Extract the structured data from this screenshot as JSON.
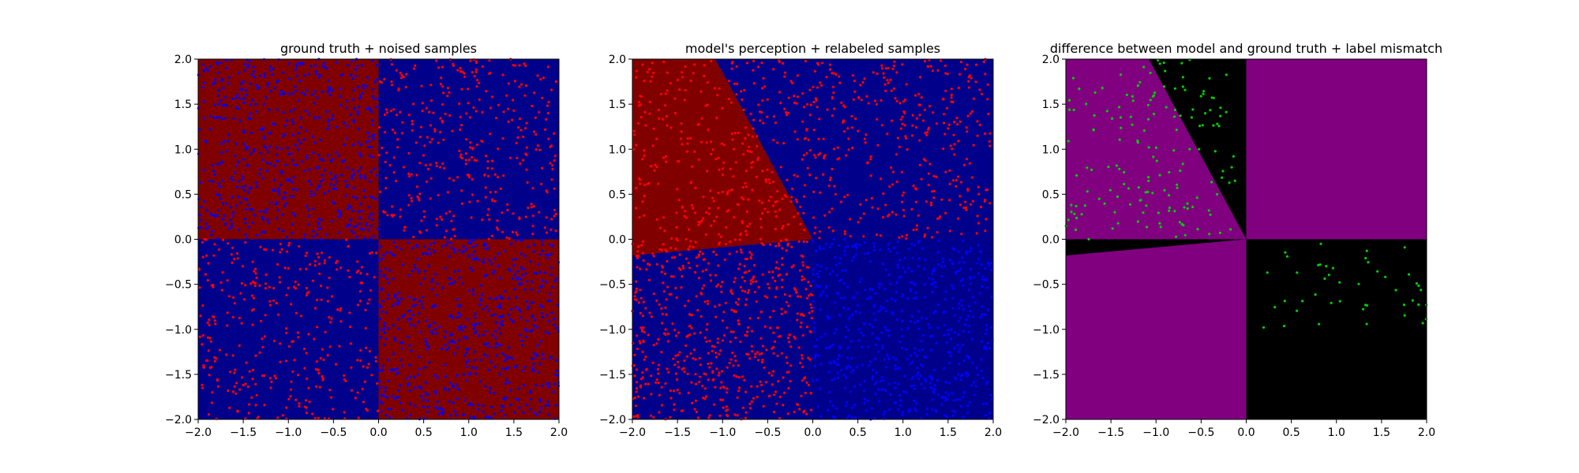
{
  "colors": {
    "dark_red": "#800000",
    "dark_blue": "#00008b",
    "purple": "#800080",
    "black": "#000000",
    "point_red": "#ff0000",
    "point_blue": "#0000ff",
    "point_green": "#00cc00"
  },
  "chart_data": [
    {
      "type": "scatter",
      "title": "ground truth + noised samples",
      "xlabel": "",
      "ylabel": "",
      "xlim": [
        -2.0,
        2.0
      ],
      "ylim": [
        -2.0,
        2.0
      ],
      "xticks": [
        "−2.0",
        "−1.5",
        "−1.0",
        "−0.5",
        "0.0",
        "0.5",
        "1.0",
        "1.5",
        "2.0"
      ],
      "yticks": [
        "−2.0",
        "−1.5",
        "−1.0",
        "−0.5",
        "0.0",
        "0.5",
        "1.0",
        "1.5",
        "2.0"
      ],
      "grid": false,
      "background_regions": [
        {
          "class": "red",
          "color": "#800000",
          "polygon": [
            [
              -2,
              0
            ],
            [
              0,
              0
            ],
            [
              0,
              2
            ],
            [
              -2,
              2
            ]
          ]
        },
        {
          "class": "blue",
          "color": "#00008b",
          "polygon": [
            [
              0,
              0
            ],
            [
              2,
              0
            ],
            [
              2,
              2
            ],
            [
              0,
              2
            ]
          ]
        },
        {
          "class": "blue",
          "color": "#00008b",
          "polygon": [
            [
              -2,
              -2
            ],
            [
              0,
              -2
            ],
            [
              0,
              0
            ],
            [
              -2,
              0
            ]
          ]
        },
        {
          "class": "red",
          "color": "#800000",
          "polygon": [
            [
              0,
              -2
            ],
            [
              2,
              -2
            ],
            [
              2,
              0
            ],
            [
              0,
              0
            ]
          ]
        }
      ],
      "series_groups": [
        {
          "color": "#0000ff",
          "regions": [
            [
              -2,
              0,
              0,
              2
            ],
            [
              0,
              2,
              -2,
              0
            ]
          ],
          "count": 1200
        },
        {
          "color": "#ff0000",
          "regions": [
            [
              0,
              2,
              0,
              2
            ],
            [
              -2,
              0,
              -2,
              0
            ]
          ],
          "count": 700
        }
      ]
    },
    {
      "type": "scatter",
      "title": "model's perception + relabeled samples",
      "xlabel": "",
      "ylabel": "",
      "xlim": [
        -2.0,
        2.0
      ],
      "ylim": [
        -2.0,
        2.0
      ],
      "xticks": [
        "−2.0",
        "−1.5",
        "−1.0",
        "−0.5",
        "0.0",
        "0.5",
        "1.0",
        "1.5",
        "2.0"
      ],
      "yticks": [
        "−2.0",
        "−1.5",
        "−1.0",
        "−0.5",
        "0.0",
        "0.5",
        "1.0",
        "1.5",
        "2.0"
      ],
      "grid": false,
      "background_regions": [
        {
          "class": "blue",
          "color": "#00008b",
          "polygon": [
            [
              -2,
              -2
            ],
            [
              2,
              -2
            ],
            [
              2,
              2
            ],
            [
              -2,
              2
            ]
          ]
        },
        {
          "class": "red",
          "color": "#800000",
          "polygon": [
            [
              -2,
              2
            ],
            [
              -1.08,
              2
            ],
            [
              0,
              0
            ],
            [
              -2,
              -0.18
            ]
          ]
        }
      ],
      "series_groups": [
        {
          "color": "#ff0000",
          "regions": [
            [
              -2,
              2,
              0,
              2
            ],
            [
              -2,
              0,
              -2,
              0
            ]
          ],
          "count": 1300
        },
        {
          "color": "#0000ff",
          "regions": [
            [
              0,
              2,
              -2,
              0
            ]
          ],
          "count": 600
        }
      ]
    },
    {
      "type": "scatter",
      "title": "difference between model and ground truth + label mismatch",
      "xlabel": "",
      "ylabel": "",
      "xlim": [
        -2.0,
        2.0
      ],
      "ylim": [
        -2.0,
        2.0
      ],
      "xticks": [
        "−2.0",
        "−1.5",
        "−1.0",
        "−0.5",
        "0.0",
        "0.5",
        "1.0",
        "1.5",
        "2.0"
      ],
      "yticks": [
        "−2.0",
        "−1.5",
        "−1.0",
        "−0.5",
        "0.0",
        "0.5",
        "1.0",
        "1.5",
        "2.0"
      ],
      "grid": false,
      "background_regions": [
        {
          "class": "match",
          "color": "#800080",
          "polygon": [
            [
              -2,
              -2
            ],
            [
              2,
              -2
            ],
            [
              2,
              2
            ],
            [
              -2,
              2
            ]
          ]
        },
        {
          "class": "mismatch",
          "color": "#000000",
          "polygon": [
            [
              -1.08,
              2
            ],
            [
              0,
              2
            ],
            [
              0,
              0
            ]
          ]
        },
        {
          "class": "mismatch",
          "color": "#000000",
          "polygon": [
            [
              -2,
              0
            ],
            [
              0,
              0
            ],
            [
              -2,
              -0.18
            ]
          ]
        },
        {
          "class": "mismatch",
          "color": "#000000",
          "polygon": [
            [
              0,
              -2
            ],
            [
              2,
              -2
            ],
            [
              2,
              0
            ],
            [
              0,
              0
            ]
          ]
        }
      ],
      "series_groups": [
        {
          "color": "#00cc00",
          "regions": [
            [
              -2,
              -0.1,
              0,
              2
            ]
          ],
          "count": 160
        },
        {
          "color": "#00cc00",
          "regions": [
            [
              0.1,
              2,
              -1,
              0
            ]
          ],
          "count": 45
        }
      ]
    }
  ]
}
